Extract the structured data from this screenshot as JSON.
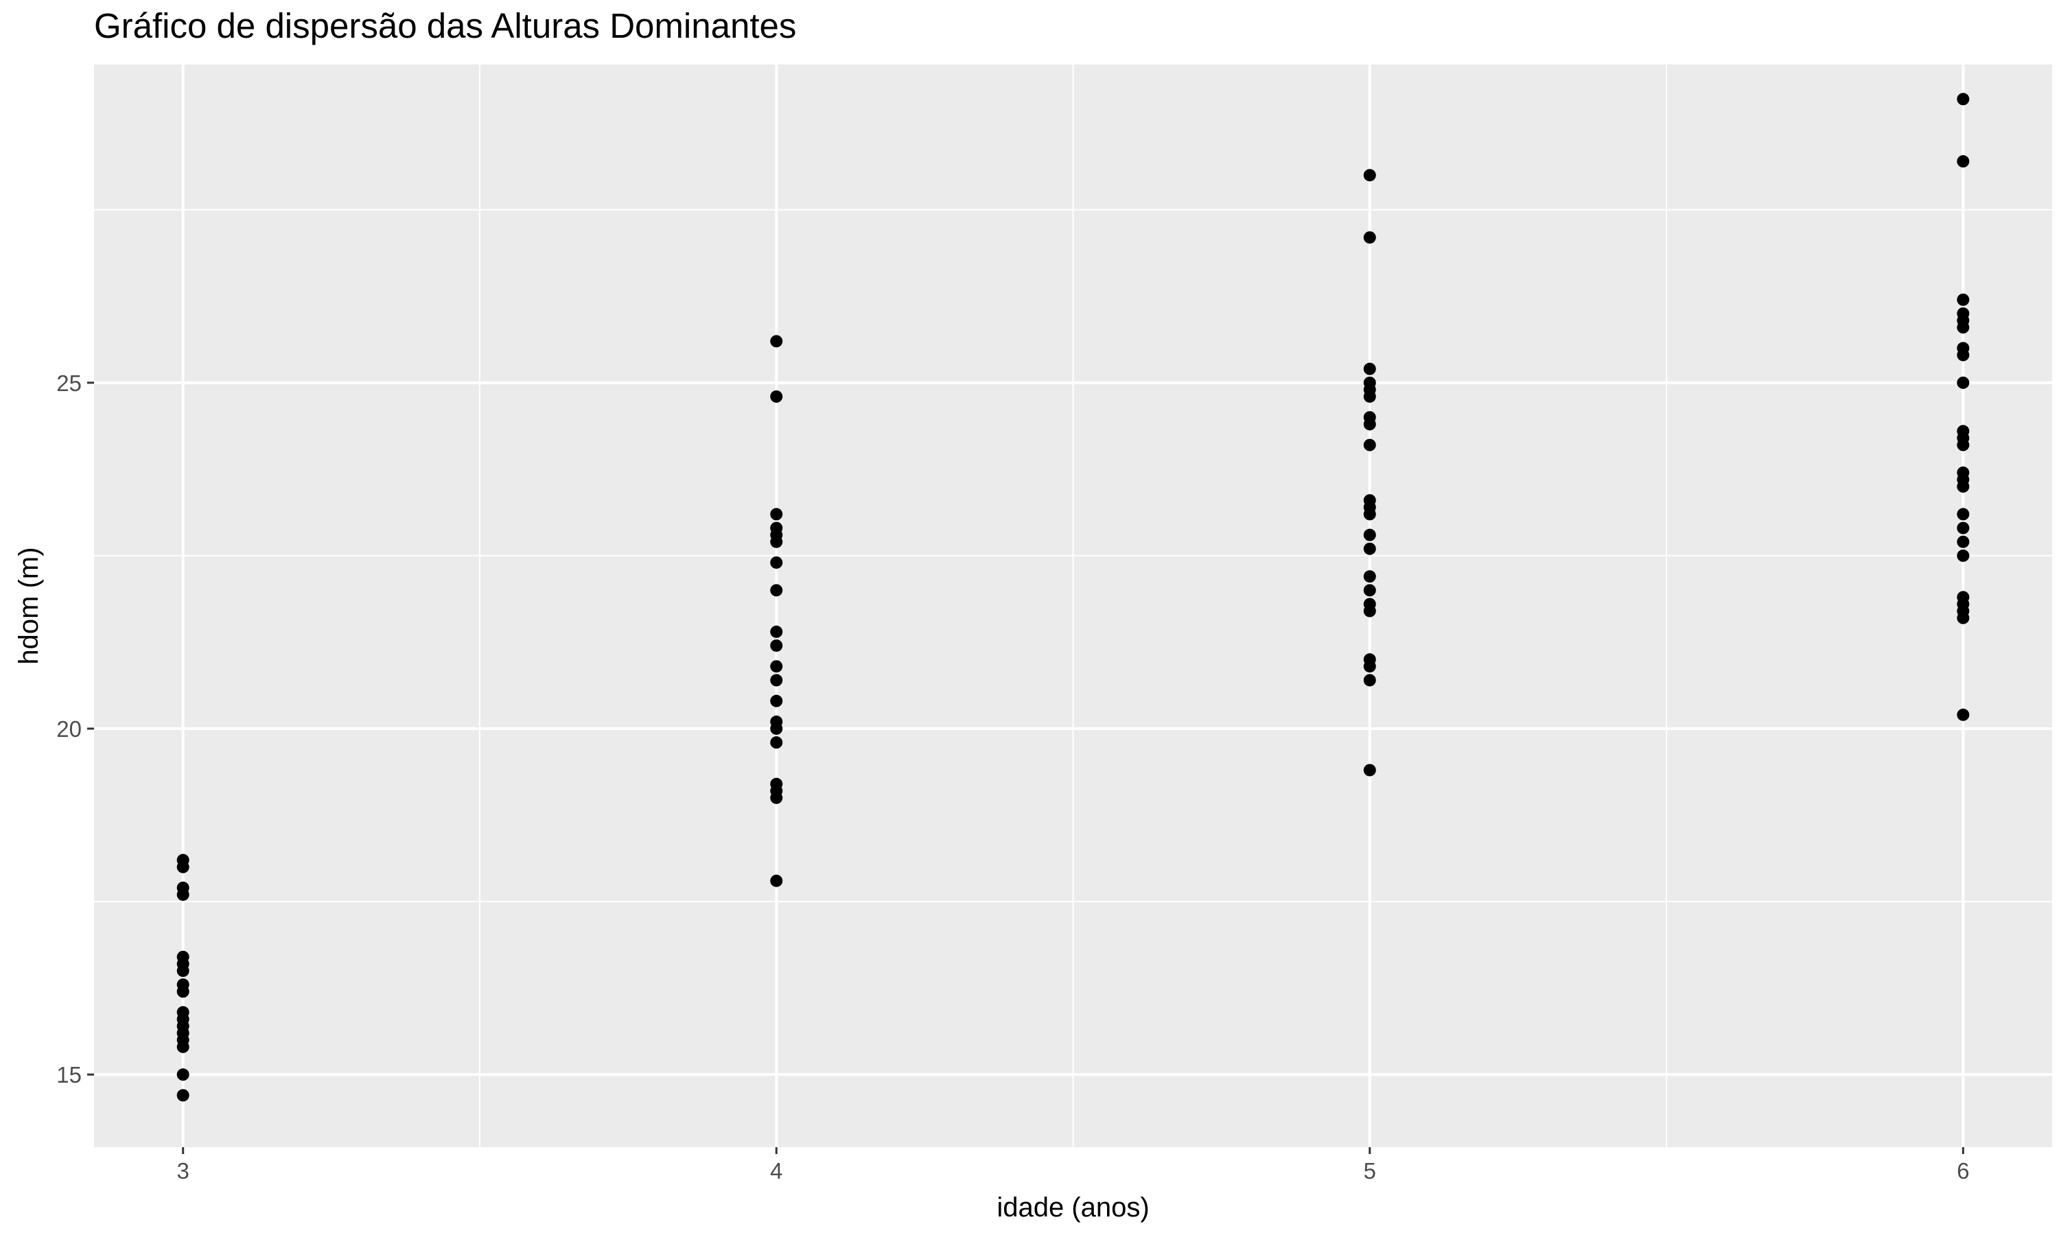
{
  "chart_data": {
    "type": "scatter",
    "title": "Gráfico de dispersão das Alturas Dominantes",
    "xlabel": "idade (anos)",
    "ylabel": "hdom (m)",
    "xlim": [
      2.85,
      6.15
    ],
    "ylim": [
      13.95,
      29.6
    ],
    "x_ticks": [
      3,
      4,
      5,
      6
    ],
    "x_tick_labels": [
      "3",
      "4",
      "5",
      "6"
    ],
    "y_ticks": [
      15,
      20,
      25
    ],
    "y_tick_labels": [
      "15",
      "20",
      "25"
    ],
    "grid": true,
    "legend": "none",
    "colors": {
      "panel": "#ebebeb",
      "grid": "#ffffff",
      "point": "#000000",
      "tick_text": "#4d4d4d"
    },
    "points": [
      {
        "x": 3,
        "y": 18.1
      },
      {
        "x": 3,
        "y": 18.0
      },
      {
        "x": 3,
        "y": 17.7
      },
      {
        "x": 3,
        "y": 17.6
      },
      {
        "x": 3,
        "y": 16.7
      },
      {
        "x": 3,
        "y": 16.6
      },
      {
        "x": 3,
        "y": 16.5
      },
      {
        "x": 3,
        "y": 16.3
      },
      {
        "x": 3,
        "y": 16.2
      },
      {
        "x": 3,
        "y": 15.9
      },
      {
        "x": 3,
        "y": 15.8
      },
      {
        "x": 3,
        "y": 15.7
      },
      {
        "x": 3,
        "y": 15.6
      },
      {
        "x": 3,
        "y": 15.5
      },
      {
        "x": 3,
        "y": 15.4
      },
      {
        "x": 3,
        "y": 15.0
      },
      {
        "x": 3,
        "y": 14.7
      },
      {
        "x": 4,
        "y": 25.6
      },
      {
        "x": 4,
        "y": 24.8
      },
      {
        "x": 4,
        "y": 23.1
      },
      {
        "x": 4,
        "y": 22.9
      },
      {
        "x": 4,
        "y": 22.8
      },
      {
        "x": 4,
        "y": 22.7
      },
      {
        "x": 4,
        "y": 22.4
      },
      {
        "x": 4,
        "y": 22.0
      },
      {
        "x": 4,
        "y": 21.4
      },
      {
        "x": 4,
        "y": 21.2
      },
      {
        "x": 4,
        "y": 20.9
      },
      {
        "x": 4,
        "y": 20.7
      },
      {
        "x": 4,
        "y": 20.4
      },
      {
        "x": 4,
        "y": 20.1
      },
      {
        "x": 4,
        "y": 20.0
      },
      {
        "x": 4,
        "y": 19.8
      },
      {
        "x": 4,
        "y": 19.2
      },
      {
        "x": 4,
        "y": 19.1
      },
      {
        "x": 4,
        "y": 19.0
      },
      {
        "x": 4,
        "y": 17.8
      },
      {
        "x": 5,
        "y": 28.0
      },
      {
        "x": 5,
        "y": 27.1
      },
      {
        "x": 5,
        "y": 25.2
      },
      {
        "x": 5,
        "y": 25.0
      },
      {
        "x": 5,
        "y": 24.9
      },
      {
        "x": 5,
        "y": 24.8
      },
      {
        "x": 5,
        "y": 24.5
      },
      {
        "x": 5,
        "y": 24.4
      },
      {
        "x": 5,
        "y": 24.1
      },
      {
        "x": 5,
        "y": 23.3
      },
      {
        "x": 5,
        "y": 23.2
      },
      {
        "x": 5,
        "y": 23.1
      },
      {
        "x": 5,
        "y": 22.8
      },
      {
        "x": 5,
        "y": 22.6
      },
      {
        "x": 5,
        "y": 22.2
      },
      {
        "x": 5,
        "y": 22.0
      },
      {
        "x": 5,
        "y": 21.8
      },
      {
        "x": 5,
        "y": 21.7
      },
      {
        "x": 5,
        "y": 21.0
      },
      {
        "x": 5,
        "y": 20.9
      },
      {
        "x": 5,
        "y": 20.7
      },
      {
        "x": 5,
        "y": 19.4
      },
      {
        "x": 6,
        "y": 29.1
      },
      {
        "x": 6,
        "y": 28.2
      },
      {
        "x": 6,
        "y": 26.2
      },
      {
        "x": 6,
        "y": 26.0
      },
      {
        "x": 6,
        "y": 25.9
      },
      {
        "x": 6,
        "y": 25.8
      },
      {
        "x": 6,
        "y": 25.5
      },
      {
        "x": 6,
        "y": 25.4
      },
      {
        "x": 6,
        "y": 25.0
      },
      {
        "x": 6,
        "y": 24.3
      },
      {
        "x": 6,
        "y": 24.2
      },
      {
        "x": 6,
        "y": 24.1
      },
      {
        "x": 6,
        "y": 23.7
      },
      {
        "x": 6,
        "y": 23.6
      },
      {
        "x": 6,
        "y": 23.5
      },
      {
        "x": 6,
        "y": 23.1
      },
      {
        "x": 6,
        "y": 22.9
      },
      {
        "x": 6,
        "y": 22.7
      },
      {
        "x": 6,
        "y": 22.5
      },
      {
        "x": 6,
        "y": 21.9
      },
      {
        "x": 6,
        "y": 21.8
      },
      {
        "x": 6,
        "y": 21.7
      },
      {
        "x": 6,
        "y": 21.6
      },
      {
        "x": 6,
        "y": 20.2
      }
    ]
  }
}
